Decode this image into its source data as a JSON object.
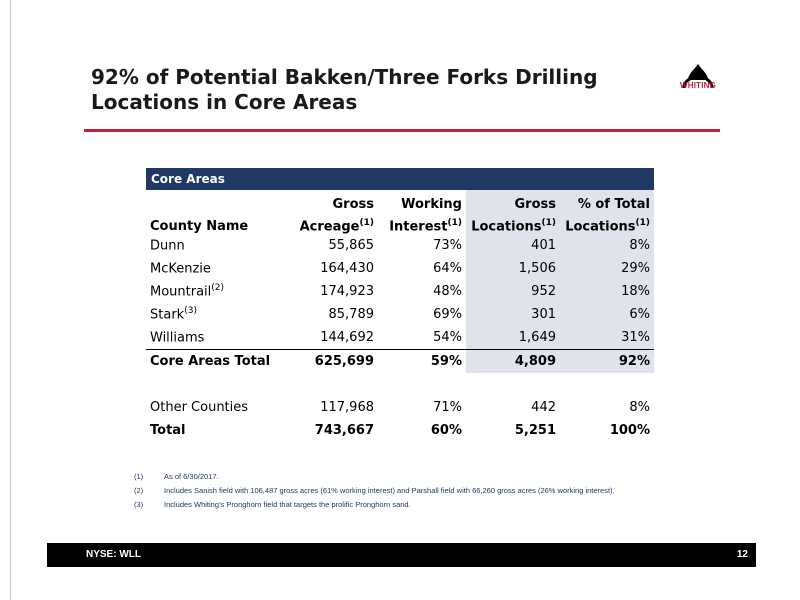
{
  "slide": {
    "title": "92% of Potential Bakken/Three Forks Drilling Locations in Core Areas",
    "logo_text": "WHITING",
    "accent_color": "#c41e3a",
    "header_color": "#1f3864"
  },
  "table": {
    "section_label": "Core Areas",
    "columns": {
      "county": "County Name",
      "acreage_top": "Gross",
      "acreage_bottom": "Acreage",
      "interest_top": "Working",
      "interest_bottom": "Interest",
      "locations_top": "Gross",
      "locations_bottom": "Locations",
      "pct_top": "% of Total",
      "pct_bottom": "Locations",
      "sup1": "(1)"
    },
    "rows": [
      {
        "county": "Dunn",
        "sup": "",
        "acreage": "55,865",
        "interest": "73%",
        "locations": "401",
        "pct": "8%"
      },
      {
        "county": "McKenzie",
        "sup": "",
        "acreage": "164,430",
        "interest": "64%",
        "locations": "1,506",
        "pct": "29%"
      },
      {
        "county": "Mountrail",
        "sup": "(2)",
        "acreage": "174,923",
        "interest": "48%",
        "locations": "952",
        "pct": "18%"
      },
      {
        "county": "Stark",
        "sup": "(3)",
        "acreage": "85,789",
        "interest": "69%",
        "locations": "301",
        "pct": "6%"
      },
      {
        "county": "Williams",
        "sup": "",
        "acreage": "144,692",
        "interest": "54%",
        "locations": "1,649",
        "pct": "31%"
      }
    ],
    "core_total": {
      "county": "Core Areas Total",
      "acreage": "625,699",
      "interest": "59%",
      "locations": "4,809",
      "pct": "92%"
    },
    "other": {
      "county": "Other Counties",
      "acreage": "117,968",
      "interest": "71%",
      "locations": "442",
      "pct": "8%"
    },
    "total": {
      "county": "Total",
      "acreage": "743,667",
      "interest": "60%",
      "locations": "5,251",
      "pct": "100%"
    }
  },
  "footnotes": [
    {
      "num": "(1)",
      "text": "As of 6/30/2017."
    },
    {
      "num": "(2)",
      "text": "Includes Sanish field with 106,487 gross acres (61% working interest) and Parshall field with 66,260 gross acres (26% working interest)."
    },
    {
      "num": "(3)",
      "text": "Includes Whiting’s Pronghorn field that targets the prolific Pronghorn sand."
    }
  ],
  "footer": {
    "ticker": "NYSE: WLL",
    "page_number": "12"
  }
}
